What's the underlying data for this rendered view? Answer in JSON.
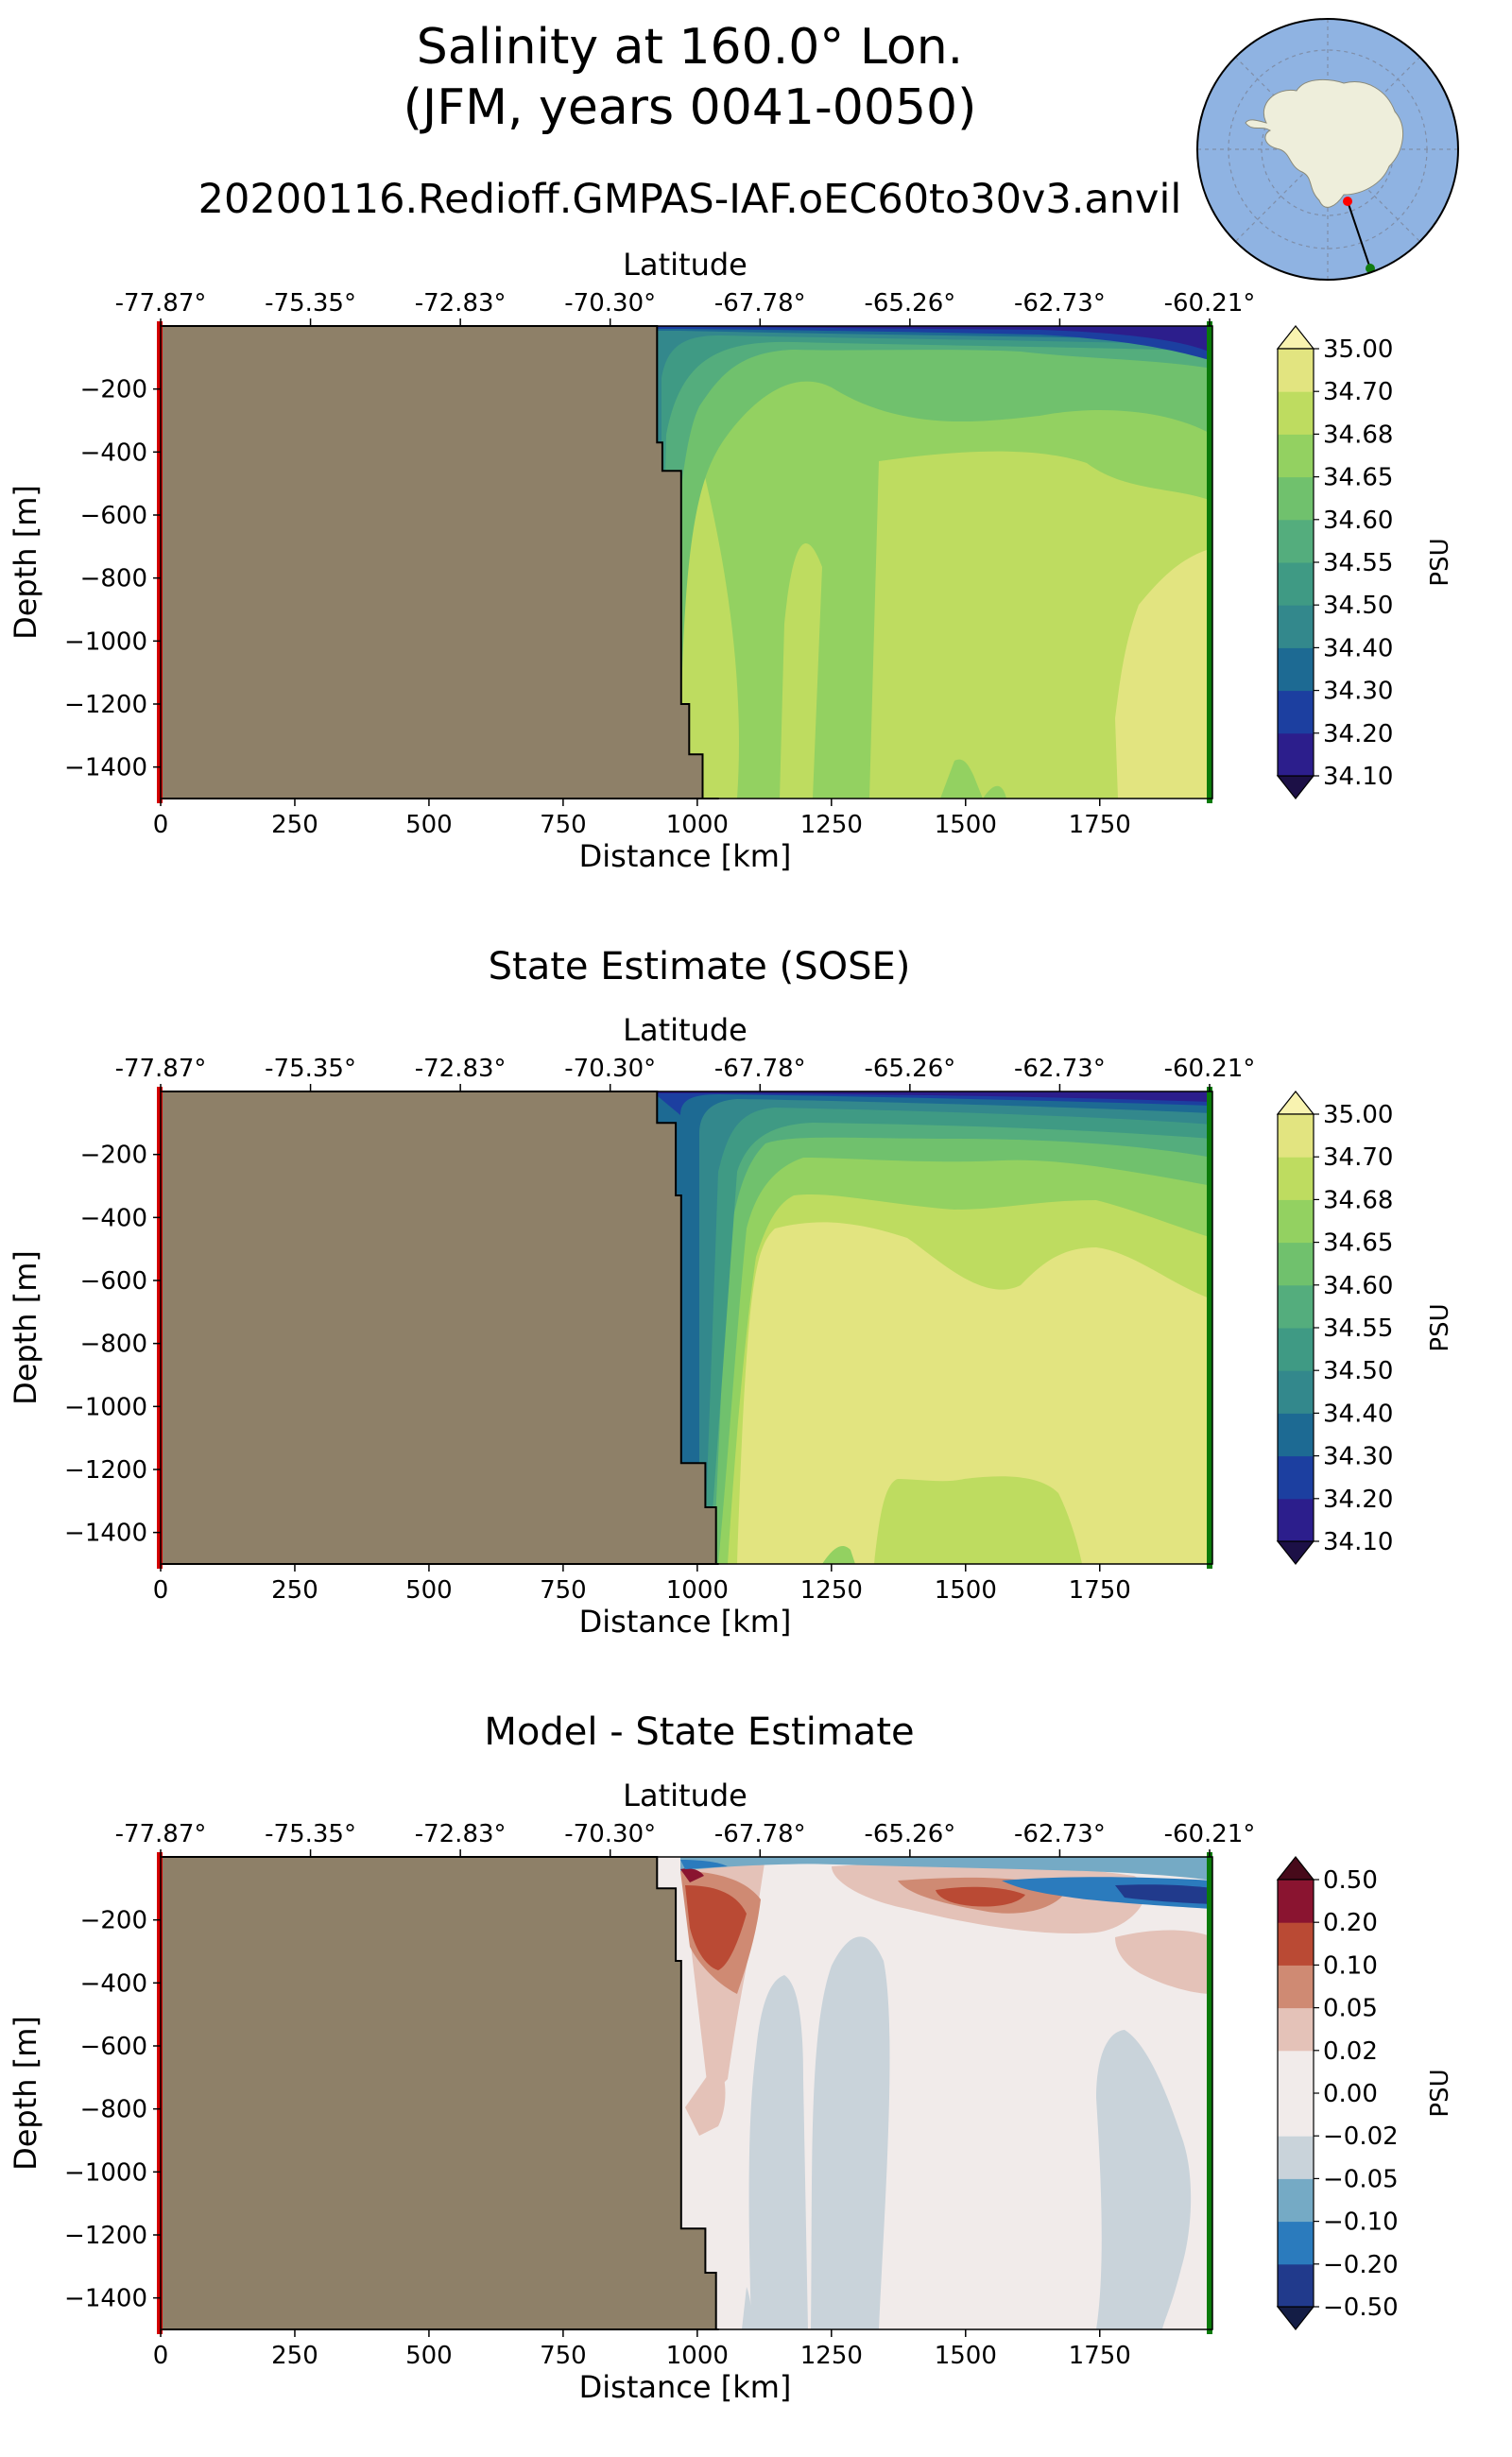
{
  "figure": {
    "title_line1": "Salinity at 160.0° Lon.",
    "title_line2": "(JFM, years 0041-0050)",
    "run_name": "20200116.Redioff.GMPAS-IAF.oEC60to30v3.anvil"
  },
  "inset_map": {
    "projection": "south-polar-stereographic",
    "land_color": "#eeeedb",
    "ocean_color": "#8fb3e2",
    "start_marker_color": "#ff0000",
    "end_marker_color": "#107c10"
  },
  "axes_common": {
    "xlabel": "Distance [km]",
    "ylabel": "Depth [m]",
    "top_label": "Latitude",
    "x_ticks": [
      "0",
      "250",
      "500",
      "750",
      "1000",
      "1250",
      "1500",
      "1750"
    ],
    "x_tick_values": [
      0,
      250,
      500,
      750,
      1000,
      1250,
      1500,
      1750
    ],
    "lat_ticks": [
      "-77.87°",
      "-75.35°",
      "-72.83°",
      "-70.30°",
      "-67.78°",
      "-65.26°",
      "-62.73°",
      "-60.21°"
    ],
    "y_ticks": [
      "−200",
      "−400",
      "−600",
      "−800",
      "−1000",
      "−1200",
      "−1400"
    ],
    "y_tick_values": [
      -200,
      -400,
      -600,
      -800,
      -1000,
      -1200,
      -1400
    ],
    "land_color": "#8e8068",
    "start_line_color": "#d40000",
    "end_line_color": "#0a7a0a"
  },
  "panel_titles": {
    "model": "",
    "sose": "State Estimate (SOSE)",
    "diff": "Model - State Estimate"
  },
  "colorbar_salinity": {
    "label": "PSU",
    "tick_labels": [
      "34.10",
      "34.20",
      "34.30",
      "34.40",
      "34.50",
      "34.55",
      "34.60",
      "34.65",
      "34.68",
      "34.70",
      "35.00"
    ],
    "colors": [
      "#2c1e8c",
      "#1c3fa0",
      "#1d6a93",
      "#33888c",
      "#3f9a84",
      "#54ad7d",
      "#70c16d",
      "#93d161",
      "#bedc60",
      "#e2e480"
    ],
    "extend_low_color": "#1c1046",
    "extend_high_color": "#f8f3b0"
  },
  "colorbar_diff": {
    "label": "PSU",
    "tick_labels": [
      "−0.50",
      "−0.20",
      "−0.10",
      "−0.05",
      "−0.02",
      "0.00",
      "0.02",
      "0.05",
      "0.10",
      "0.20",
      "0.50"
    ],
    "colors": [
      "#213a8c",
      "#2b7bbd",
      "#75aac5",
      "#c9d3da",
      "#f1ebea",
      "#f1ebea",
      "#e4c2b8",
      "#cf8a73",
      "#ba4a34",
      "#8a1430"
    ],
    "extend_low_color": "#141d45",
    "extend_high_color": "#470a1a"
  },
  "chart_data": [
    {
      "type": "heatmap",
      "name": "model",
      "x_range_km": [
        0,
        1960
      ],
      "y_range_m": [
        -1500,
        0
      ],
      "land_boundary_km_by_depth": [
        [
          0,
          925
        ],
        [
          -100,
          925
        ],
        [
          -370,
          935
        ],
        [
          -460,
          970
        ],
        [
          -1200,
          985
        ],
        [
          -1360,
          1010
        ],
        [
          -1500,
          1040
        ]
      ]
    },
    {
      "type": "heatmap",
      "name": "sose",
      "x_range_km": [
        0,
        1960
      ],
      "y_range_m": [
        -1500,
        0
      ],
      "land_boundary_km_by_depth": [
        [
          0,
          925
        ],
        [
          -100,
          960
        ],
        [
          -330,
          970
        ],
        [
          -1180,
          1015
        ],
        [
          -1320,
          1035
        ],
        [
          -1500,
          1040
        ]
      ]
    },
    {
      "type": "heatmap",
      "name": "model-minus-sose",
      "x_range_km": [
        0,
        1960
      ],
      "y_range_m": [
        -1500,
        0
      ],
      "land_boundary_km_by_depth": [
        [
          0,
          925
        ],
        [
          -100,
          960
        ],
        [
          -330,
          970
        ],
        [
          -1180,
          1015
        ],
        [
          -1320,
          1035
        ],
        [
          -1500,
          1040
        ]
      ]
    }
  ]
}
